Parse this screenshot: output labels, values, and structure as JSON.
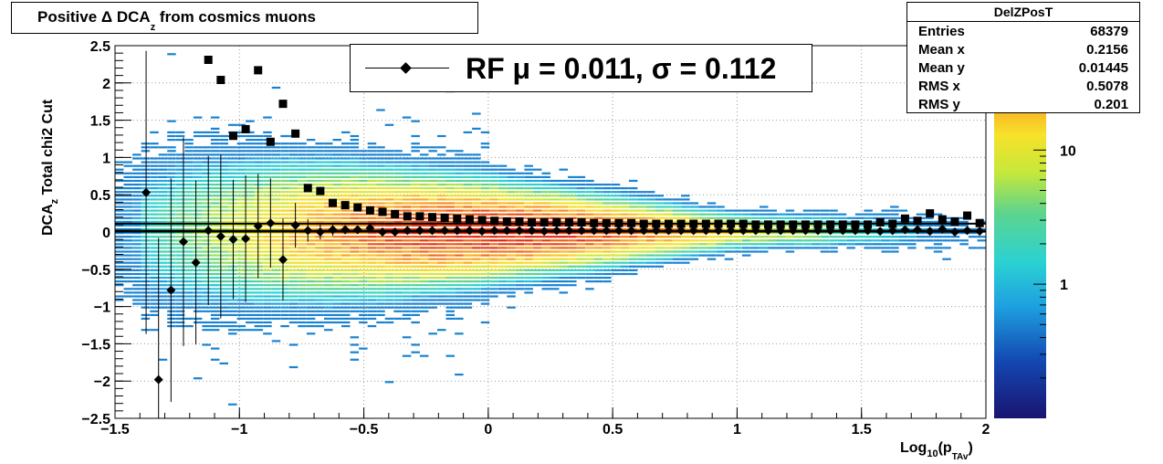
{
  "title": {
    "main": "Positive Δ DCA",
    "sub": "z",
    "rest": " from cosmics muons"
  },
  "stats_box": {
    "name": "DelZPosT",
    "rows": [
      {
        "label": "Entries",
        "value": "68379"
      },
      {
        "label": "Mean x",
        "value": "0.2156"
      },
      {
        "label": "Mean y",
        "value": "0.01445"
      },
      {
        "label": "RMS x",
        "value": "0.5078"
      },
      {
        "label": "RMS y",
        "value": "0.201"
      }
    ]
  },
  "legend": {
    "label": "RF μ =  0.011, σ =   0.112"
  },
  "axes": {
    "x_title_main": "Log",
    "x_title_sub1": "10",
    "x_title_mid": "(p",
    "x_title_sub2": "TAv",
    "x_title_end": ")",
    "y_title_main": "DCA",
    "y_title_sub": "z",
    "y_title_rest": "  Total chi2 Cut"
  },
  "colors": {
    "frame": "#000000",
    "grid": "#9a9a9a",
    "points": "#000000"
  },
  "chart_data": {
    "type": "heatmap",
    "xlim": [
      -1.5,
      2
    ],
    "ylim": [
      -2.5,
      2.5
    ],
    "x_ticks": [
      "−1.5",
      "−1",
      "−0.5",
      "0",
      "0.5",
      "1",
      "1.5",
      "2"
    ],
    "x_tick_values": [
      -1.5,
      -1,
      -0.5,
      0,
      0.5,
      1,
      1.5,
      2
    ],
    "y_ticks": [
      "−2.5",
      "−2",
      "−1.5",
      "−1",
      "−0.5",
      "0",
      "0.5",
      "1",
      "1.5",
      "2",
      "2.5"
    ],
    "y_tick_values": [
      -2.5,
      -2,
      -1.5,
      -1,
      -0.5,
      0,
      0.5,
      1,
      1.5,
      2,
      2.5
    ],
    "grid": true,
    "z_scale": "log",
    "z_ticks": [
      "1",
      "10"
    ],
    "z_tick_values": [
      1,
      10
    ],
    "zlim": [
      0.1,
      60
    ],
    "mean_line_y": 0.011,
    "sigma_line_y": 0.112,
    "series": [
      {
        "marker": "diamond",
        "x": [
          -1.375,
          -1.325,
          -1.275,
          -1.225,
          -1.175,
          -1.125,
          -1.075,
          -1.025,
          -0.975,
          -0.925,
          -0.875,
          -0.825,
          -0.775,
          -0.725,
          -0.675,
          -0.625,
          -0.575,
          -0.525,
          -0.475,
          -0.425,
          -0.375,
          -0.325,
          -0.275,
          -0.225,
          -0.175,
          -0.125,
          -0.075,
          -0.025,
          0.025,
          0.075,
          0.125,
          0.175,
          0.225,
          0.275,
          0.325,
          0.375,
          0.425,
          0.475,
          0.525,
          0.575,
          0.625,
          0.675,
          0.725,
          0.775,
          0.825,
          0.875,
          0.925,
          0.975,
          1.025,
          1.075,
          1.125,
          1.175,
          1.225,
          1.275,
          1.325,
          1.375,
          1.425,
          1.475,
          1.525,
          1.575,
          1.625,
          1.675,
          1.725,
          1.775,
          1.825,
          1.875,
          1.925,
          1.975
        ],
        "y": [
          0.53,
          -1.98,
          -0.78,
          -0.13,
          -0.41,
          0.02,
          -0.06,
          -0.1,
          -0.09,
          0.08,
          0.12,
          -0.37,
          0.09,
          0.02,
          0.0,
          0.03,
          0.03,
          0.03,
          0.05,
          0.0,
          0.0,
          0.02,
          0.02,
          0.02,
          0.02,
          0.02,
          0.02,
          0.01,
          0.02,
          0.02,
          0.02,
          0.02,
          0.01,
          0.02,
          0.02,
          0.02,
          0.02,
          0.02,
          0.02,
          0.02,
          0.02,
          0.02,
          0.02,
          0.02,
          0.02,
          0.02,
          0.02,
          0.02,
          0.02,
          0.02,
          0.02,
          0.02,
          0.02,
          0.02,
          0.02,
          0.02,
          0.02,
          0.02,
          0.02,
          0.01,
          0.02,
          0.03,
          0.03,
          0.01,
          0.04,
          0.0,
          0.02,
          0.01
        ],
        "err": [
          1.9,
          1.9,
          1.5,
          1.4,
          1.1,
          1.0,
          1.1,
          0.8,
          0.85,
          0.7,
          0.6,
          0.55,
          0.3,
          0.15,
          0.1,
          0.08,
          0.06,
          0.05,
          0.04,
          0.03,
          0.03,
          0.02,
          0.02,
          0.02,
          0.02,
          0.02,
          0.02,
          0.02,
          0.02,
          0.02,
          0.02,
          0.02,
          0.02,
          0.02,
          0.02,
          0.02,
          0.02,
          0.02,
          0.02,
          0.02,
          0.02,
          0.02,
          0.02,
          0.02,
          0.02,
          0.02,
          0.02,
          0.02,
          0.02,
          0.02,
          0.02,
          0.02,
          0.02,
          0.02,
          0.02,
          0.02,
          0.02,
          0.02,
          0.02,
          0.02,
          0.03,
          0.03,
          0.03,
          0.03,
          0.04,
          0.04,
          0.05,
          0.05
        ]
      },
      {
        "marker": "square",
        "x": [
          -1.125,
          -1.075,
          -1.025,
          -0.975,
          -0.925,
          -0.875,
          -0.825,
          -0.775,
          -0.725,
          -0.675,
          -0.625,
          -0.575,
          -0.525,
          -0.475,
          -0.425,
          -0.375,
          -0.325,
          -0.275,
          -0.225,
          -0.175,
          -0.125,
          -0.075,
          -0.025,
          0.025,
          0.075,
          0.125,
          0.175,
          0.225,
          0.275,
          0.325,
          0.375,
          0.425,
          0.475,
          0.525,
          0.575,
          0.625,
          0.675,
          0.725,
          0.775,
          0.825,
          0.875,
          0.925,
          0.975,
          1.025,
          1.075,
          1.125,
          1.175,
          1.225,
          1.275,
          1.325,
          1.375,
          1.425,
          1.475,
          1.525,
          1.575,
          1.625,
          1.675,
          1.725,
          1.775,
          1.825,
          1.875,
          1.925,
          1.975
        ],
        "y": [
          2.31,
          2.04,
          1.29,
          1.38,
          2.17,
          1.21,
          1.72,
          1.32,
          0.59,
          0.55,
          0.39,
          0.36,
          0.33,
          0.29,
          0.27,
          0.24,
          0.21,
          0.21,
          0.2,
          0.19,
          0.18,
          0.17,
          0.16,
          0.15,
          0.14,
          0.14,
          0.13,
          0.13,
          0.13,
          0.13,
          0.13,
          0.12,
          0.12,
          0.12,
          0.12,
          0.11,
          0.11,
          0.11,
          0.11,
          0.11,
          0.11,
          0.11,
          0.11,
          0.11,
          0.1,
          0.1,
          0.1,
          0.1,
          0.1,
          0.1,
          0.1,
          0.1,
          0.1,
          0.1,
          0.13,
          0.11,
          0.18,
          0.15,
          0.25,
          0.17,
          0.14,
          0.22,
          0.12
        ]
      }
    ]
  }
}
